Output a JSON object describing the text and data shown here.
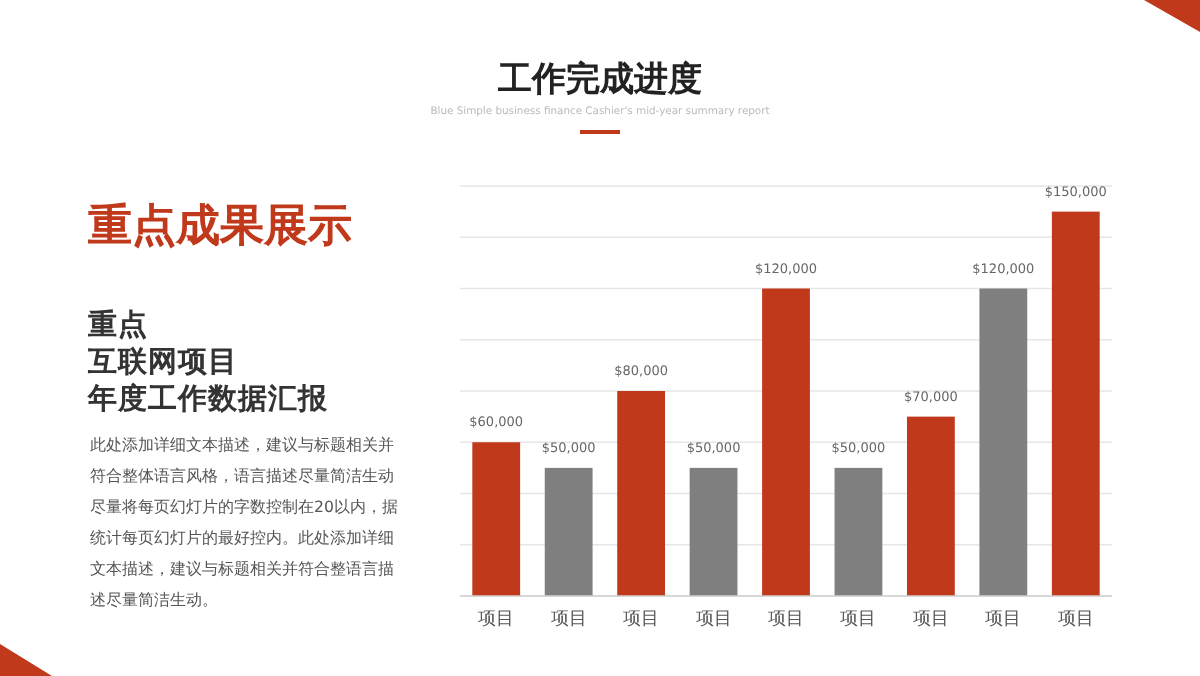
{
  "chart_data": {
    "type": "bar",
    "title": "工作完成进度",
    "subtitle": "Blue Simple business finance Cashier's mid-year summary report",
    "annotations": [
      "重点成果展示",
      "重点",
      "互联网项目",
      "年度工作数据汇报",
      "此处添加详细文本描述，建议与标题相关并",
      "符合整体语言风格，语言描述尽量简洁生动",
      "尽量将每页幻灯片的字数控制在20以内，据",
      "统计每页幻灯片的最好控内。此处添加详细",
      "文本描述，建议与标题相关并符合整语言描",
      "述尽量简洁生动。"
    ],
    "categories": [
      "项目",
      "项目",
      "项目",
      "项目",
      "项目",
      "项目",
      "项目",
      "项目",
      "项目"
    ],
    "values": [
      60000,
      50000,
      80000,
      50000,
      120000,
      50000,
      70000,
      120000,
      150000
    ],
    "colors": [
      "#c0391b",
      "#7f7f7f",
      "#c0391b",
      "#7f7f7f",
      "#c0391b",
      "#7f7f7f",
      "#c0391b",
      "#7f7f7f",
      "#c0391b"
    ],
    "value_labels": [
      "$60,000",
      "$50,000",
      "$80,000",
      "$50,000",
      "$120,000",
      "$50,000",
      "$70,000",
      "$120,000",
      "$150,000"
    ],
    "ylim": [
      0,
      160000
    ],
    "yticks": [
      {
        "value": 0,
        "label": null
      },
      {
        "value": 20000,
        "label": null
      },
      {
        "value": 40000,
        "label": null
      },
      {
        "value": 60000,
        "label": null
      },
      {
        "value": 80000,
        "label": null
      },
      {
        "value": 100000,
        "label": null
      },
      {
        "value": 120000,
        "label": null
      },
      {
        "value": 140000,
        "label": null
      },
      {
        "value": 160000,
        "label": null
      }
    ],
    "grid": "y",
    "tick_labels": "x"
  }
}
